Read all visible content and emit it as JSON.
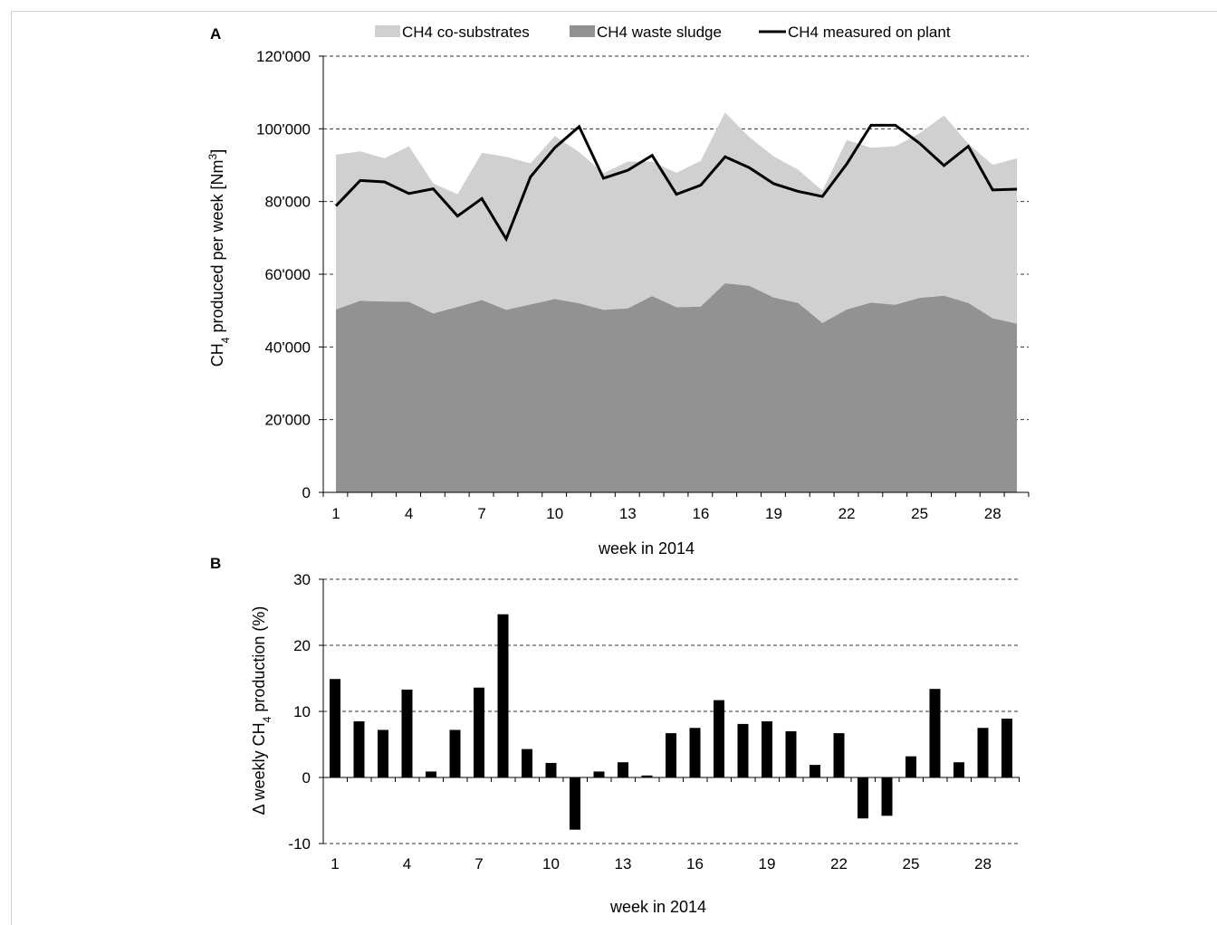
{
  "chart_data": [
    {
      "panel_label": "A",
      "type": "area",
      "x": [
        1,
        2,
        3,
        4,
        5,
        6,
        7,
        8,
        9,
        10,
        11,
        12,
        13,
        14,
        15,
        16,
        17,
        18,
        19,
        20,
        21,
        22,
        23,
        24,
        25,
        26,
        27,
        28,
        29
      ],
      "xticks": [
        "1",
        "4",
        "7",
        "10",
        "13",
        "16",
        "19",
        "22",
        "25",
        "28"
      ],
      "xlabel": "week in 2014",
      "ylabel": "CH4 produced per week [Nm3]",
      "ylabel_parts": {
        "pre": "CH",
        "sub": "4",
        "mid": " produced per week [Nm",
        "sup": "3",
        "post": "]"
      },
      "ylim": [
        0,
        120000
      ],
      "yticks": [
        "0",
        "20'000",
        "40'000",
        "60'000",
        "80'000",
        "100'000",
        "120'000"
      ],
      "grid": "horizontal dashed",
      "legend_position": "top",
      "series": [
        {
          "name": "CH4 waste sludge",
          "kind": "area",
          "color": "#929292",
          "values": [
            50300,
            52700,
            52500,
            52400,
            49200,
            51000,
            52900,
            50200,
            51700,
            53200,
            52000,
            50200,
            50600,
            54000,
            50900,
            51100,
            57500,
            56800,
            53600,
            52100,
            46600,
            50300,
            52200,
            51600,
            53500,
            54100,
            52100,
            47900,
            46400
          ]
        },
        {
          "name": "CH4 co-substrates",
          "kind": "stacked-area",
          "color": "#d0d0d0",
          "values": [
            42600,
            41100,
            39400,
            42800,
            35800,
            31000,
            40500,
            42100,
            38800,
            44800,
            41600,
            37600,
            40400,
            37000,
            37000,
            40100,
            47000,
            40900,
            38800,
            36700,
            36400,
            46600,
            42600,
            43600,
            45300,
            49600,
            43800,
            42200,
            45500
          ]
        },
        {
          "name": "CH4 measured on plant",
          "kind": "line",
          "color": "#000000",
          "values": [
            78800,
            85800,
            85400,
            82200,
            83500,
            76000,
            80800,
            69700,
            86800,
            94800,
            100600,
            86400,
            88600,
            92700,
            82000,
            84500,
            92300,
            89300,
            84900,
            82800,
            81400,
            90300,
            101000,
            101000,
            96000,
            89900,
            95200,
            83200,
            83400
          ]
        }
      ]
    },
    {
      "panel_label": "B",
      "type": "bar",
      "x": [
        1,
        2,
        3,
        4,
        5,
        6,
        7,
        8,
        9,
        10,
        11,
        12,
        13,
        14,
        15,
        16,
        17,
        18,
        19,
        20,
        21,
        22,
        23,
        24,
        25,
        26,
        27,
        28,
        29
      ],
      "xticks": [
        "1",
        "4",
        "7",
        "10",
        "13",
        "16",
        "19",
        "22",
        "25",
        "28"
      ],
      "xlabel": "week in 2014",
      "ylabel": "Δ weekly CH4 production (%)",
      "ylabel_parts": {
        "pre": "Δ weekly CH",
        "sub": "4",
        "post": " production (%)"
      },
      "ylim": [
        -10,
        30
      ],
      "yticks": [
        "-10",
        "0",
        "10",
        "20",
        "30"
      ],
      "grid": "horizontal dashed",
      "series": [
        {
          "name": "",
          "color": "#000000",
          "values": [
            14.9,
            8.5,
            7.2,
            13.3,
            0.9,
            7.2,
            13.6,
            24.7,
            4.3,
            2.2,
            -7.9,
            0.9,
            2.3,
            0.3,
            6.7,
            7.5,
            11.7,
            8.1,
            8.5,
            7.0,
            1.9,
            6.7,
            -6.2,
            -5.8,
            3.2,
            13.4,
            2.3,
            7.5,
            8.9
          ]
        }
      ]
    }
  ]
}
